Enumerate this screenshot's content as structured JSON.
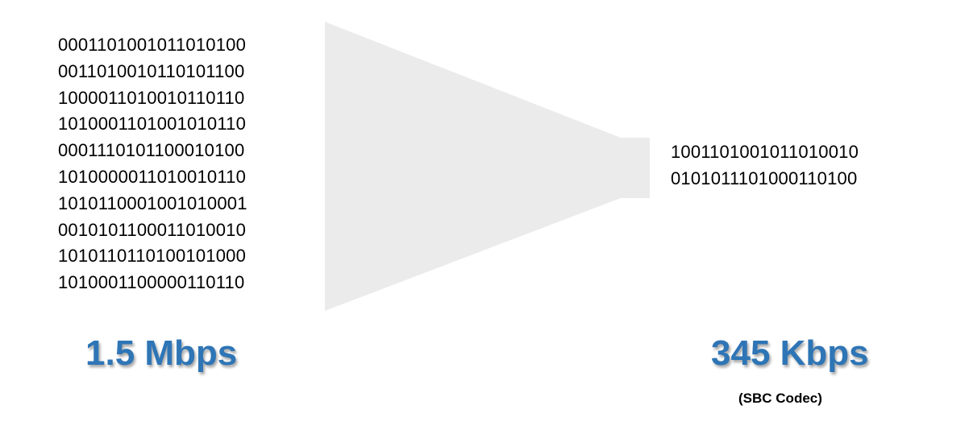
{
  "input": {
    "binary_lines": [
      "0001101001011010100",
      "0011010010110101100",
      "1000011010010110110",
      "1010001101001010110",
      "0001110101100010100",
      "1010000011010010110",
      "1010110001001010001",
      "0010101100011010010",
      "1010110110100101000",
      "1010001100000110110"
    ],
    "bitrate_label": "1.5 Mbps"
  },
  "output": {
    "binary_lines": [
      "1001101001011010010",
      "0101011101000110100"
    ],
    "bitrate_label": "345 Kbps",
    "codec_note": "(SBC Codec)"
  },
  "graphic": {
    "funnel_color": "#ebebeb",
    "wave_icon": "sound-wave-icon",
    "wave_gradient_top": "#1ee8d6",
    "wave_gradient_bottom": "#1aa3f0",
    "rate_color": "#2e75b6"
  }
}
